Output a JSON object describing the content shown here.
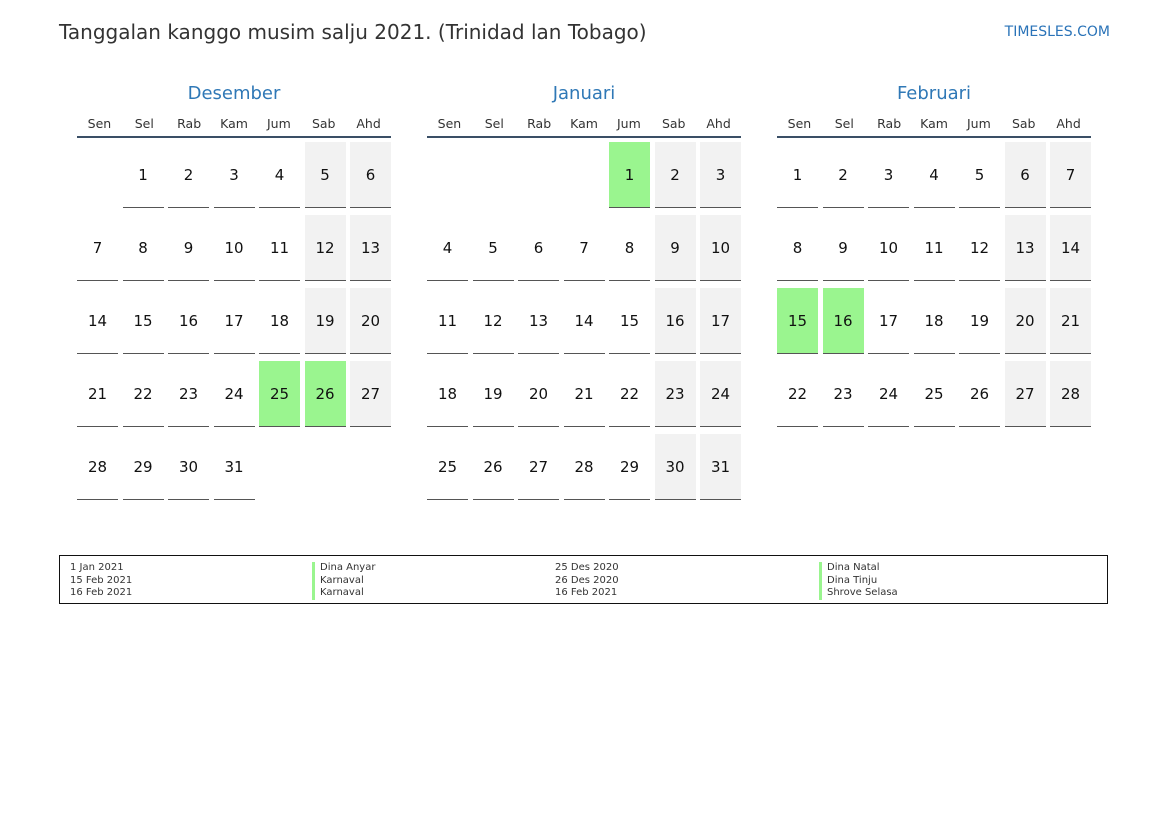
{
  "title": "Tanggalan kanggo musim salju 2021. (Trinidad lan Tobago)",
  "site": "TIMESLES.COM",
  "weekday_labels": [
    "Sen",
    "Sel",
    "Rab",
    "Kam",
    "Jum",
    "Sab",
    "Ahd"
  ],
  "colors": {
    "holiday": "#9af58f",
    "weekend": "#f2f2f2",
    "month_name": "#2f78b6"
  },
  "months": [
    {
      "name": "Desember",
      "first_weekday": 1,
      "days": 31,
      "holidays": [
        25,
        26
      ]
    },
    {
      "name": "Januari",
      "first_weekday": 4,
      "days": 31,
      "holidays": [
        1
      ]
    },
    {
      "name": "Februari",
      "first_weekday": 0,
      "days": 28,
      "holidays": [
        15,
        16
      ]
    }
  ],
  "legend": [
    {
      "date": "1 Jan 2021",
      "name": "Dina Anyar"
    },
    {
      "date": "15 Feb 2021",
      "name": "Karnaval"
    },
    {
      "date": "16 Feb 2021",
      "name": "Karnaval"
    },
    {
      "date": "25 Des 2020",
      "name": "Dina Natal"
    },
    {
      "date": "26 Des 2020",
      "name": "Dina Tinju"
    },
    {
      "date": "16 Feb 2021",
      "name": "Shrove Selasa"
    }
  ]
}
